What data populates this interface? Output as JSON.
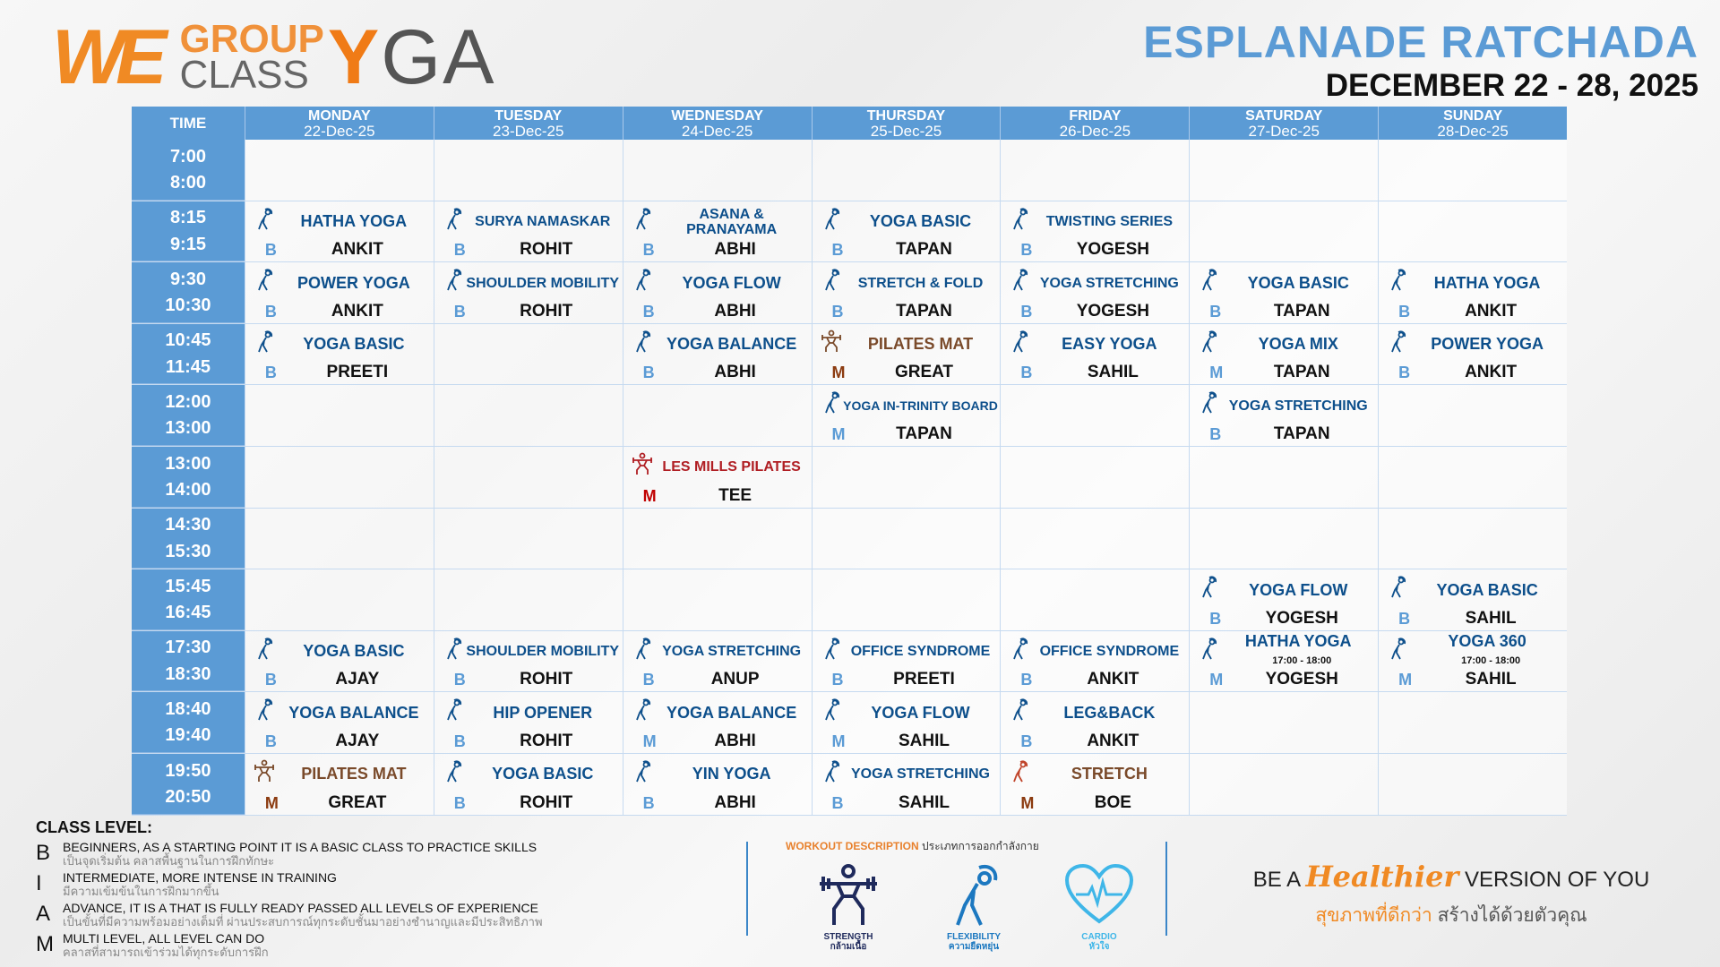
{
  "logo": {
    "we": "WE",
    "group": "GROUP",
    "class": "CLASS",
    "yoga_y": "Y",
    "yoga_rest": "GA"
  },
  "location": "ESPLANADE RATCHADA",
  "date_range": "DECEMBER 22 - 28, 2025",
  "header": {
    "time": "TIME",
    "days": [
      {
        "day": "MONDAY",
        "date": "22-Dec-25"
      },
      {
        "day": "TUESDAY",
        "date": "23-Dec-25"
      },
      {
        "day": "WEDNESDAY",
        "date": "24-Dec-25"
      },
      {
        "day": "THURSDAY",
        "date": "25-Dec-25"
      },
      {
        "day": "FRIDAY",
        "date": "26-Dec-25"
      },
      {
        "day": "SATURDAY",
        "date": "27-Dec-25"
      },
      {
        "day": "SUNDAY",
        "date": "28-Dec-25"
      }
    ]
  },
  "colors": {
    "yoga": "#0d4f8b",
    "level": "#5b9bd5",
    "pilates": "#7a4a2a",
    "pilates_level": "#8b3a0f",
    "lesmills": "#b01e23",
    "lesmills_level": "#c00000",
    "header": "#5b9bd5"
  },
  "rows": [
    {
      "start": "7:00",
      "end": "8:00",
      "cells": [
        null,
        null,
        null,
        null,
        null,
        null,
        null
      ]
    },
    {
      "start": "8:15",
      "end": "9:15",
      "cells": [
        {
          "name": "HATHA YOGA",
          "level": "B",
          "instructor": "ANKIT",
          "icon": "flexibility"
        },
        {
          "name": "SURYA NAMASKAR",
          "level": "B",
          "instructor": "ROHIT",
          "icon": "flexibility"
        },
        {
          "name": "ASANA & PRANAYAMA",
          "level": "B",
          "instructor": "ABHI",
          "icon": "flexibility"
        },
        {
          "name": "YOGA BASIC",
          "level": "B",
          "instructor": "TAPAN",
          "icon": "flexibility"
        },
        {
          "name": "TWISTING SERIES",
          "level": "B",
          "instructor": "YOGESH",
          "icon": "flexibility"
        },
        null,
        null
      ]
    },
    {
      "start": "9:30",
      "end": "10:30",
      "cells": [
        {
          "name": "POWER YOGA",
          "level": "B",
          "instructor": "ANKIT",
          "icon": "flexibility"
        },
        {
          "name": "SHOULDER MOBILITY",
          "level": "B",
          "instructor": "ROHIT",
          "icon": "flexibility"
        },
        {
          "name": "YOGA FLOW",
          "level": "B",
          "instructor": "ABHI",
          "icon": "flexibility"
        },
        {
          "name": "STRETCH & FOLD",
          "level": "B",
          "instructor": "TAPAN",
          "icon": "flexibility"
        },
        {
          "name": "YOGA STRETCHING",
          "level": "B",
          "instructor": "YOGESH",
          "icon": "flexibility"
        },
        {
          "name": "YOGA BASIC",
          "level": "B",
          "instructor": "TAPAN",
          "icon": "flexibility"
        },
        {
          "name": "HATHA YOGA",
          "level": "B",
          "instructor": "ANKIT",
          "icon": "flexibility"
        }
      ]
    },
    {
      "start": "10:45",
      "end": "11:45",
      "cells": [
        {
          "name": "YOGA BASIC",
          "level": "B",
          "instructor": "PREETI",
          "icon": "flexibility"
        },
        null,
        {
          "name": "YOGA BALANCE",
          "level": "B",
          "instructor": "ABHI",
          "icon": "flexibility"
        },
        {
          "name": "PILATES MAT",
          "level": "M",
          "instructor": "GREAT",
          "icon": "strength",
          "style": "pilates"
        },
        {
          "name": "EASY YOGA",
          "level": "B",
          "instructor": "SAHIL",
          "icon": "flexibility"
        },
        {
          "name": "YOGA MIX",
          "level": "M",
          "instructor": "TAPAN",
          "icon": "flexibility"
        },
        {
          "name": "POWER YOGA",
          "level": "B",
          "instructor": "ANKIT",
          "icon": "flexibility"
        }
      ]
    },
    {
      "start": "12:00",
      "end": "13:00",
      "cells": [
        null,
        null,
        null,
        {
          "name": "YOGA IN-TRINITY BOARD",
          "level": "M",
          "instructor": "TAPAN",
          "icon": "flexibility"
        },
        null,
        {
          "name": "YOGA STRETCHING",
          "level": "B",
          "instructor": "TAPAN",
          "icon": "flexibility"
        },
        null
      ]
    },
    {
      "start": "13:00",
      "end": "14:00",
      "cells": [
        null,
        null,
        {
          "name": "LES MILLS PILATES",
          "level": "M",
          "instructor": "TEE",
          "icon": "strength",
          "style": "lesmills"
        },
        null,
        null,
        null,
        null
      ]
    },
    {
      "start": "14:30",
      "end": "15:30",
      "cells": [
        null,
        null,
        null,
        null,
        null,
        null,
        null
      ]
    },
    {
      "start": "15:45",
      "end": "16:45",
      "cells": [
        null,
        null,
        null,
        null,
        null,
        {
          "name": "YOGA FLOW",
          "level": "B",
          "instructor": "YOGESH",
          "icon": "flexibility"
        },
        {
          "name": "YOGA BASIC",
          "level": "B",
          "instructor": "SAHIL",
          "icon": "flexibility"
        }
      ]
    },
    {
      "start": "17:30",
      "end": "18:30",
      "cells": [
        {
          "name": "YOGA BASIC",
          "level": "B",
          "instructor": "AJAY",
          "icon": "flexibility"
        },
        {
          "name": "SHOULDER MOBILITY",
          "level": "B",
          "instructor": "ROHIT",
          "icon": "flexibility"
        },
        {
          "name": "YOGA STRETCHING",
          "level": "B",
          "instructor": "ANUP",
          "icon": "flexibility"
        },
        {
          "name": "OFFICE SYNDROME",
          "level": "B",
          "instructor": "PREETI",
          "icon": "flexibility"
        },
        {
          "name": "OFFICE SYNDROME",
          "level": "B",
          "instructor": "ANKIT",
          "icon": "flexibility"
        },
        {
          "name": "HATHA YOGA",
          "level": "M",
          "instructor": "YOGESH",
          "icon": "flexibility",
          "note": "17:00 - 18:00"
        },
        {
          "name": "YOGA 360",
          "level": "M",
          "instructor": "SAHIL",
          "icon": "flexibility",
          "note": "17:00 - 18:00"
        }
      ]
    },
    {
      "start": "18:40",
      "end": "19:40",
      "cells": [
        {
          "name": "YOGA BALANCE",
          "level": "B",
          "instructor": "AJAY",
          "icon": "flexibility"
        },
        {
          "name": "HIP OPENER",
          "level": "B",
          "instructor": "ROHIT",
          "icon": "flexibility"
        },
        {
          "name": "YOGA BALANCE",
          "level": "M",
          "instructor": "ABHI",
          "icon": "flexibility"
        },
        {
          "name": "YOGA FLOW",
          "level": "M",
          "instructor": "SAHIL",
          "icon": "flexibility"
        },
        {
          "name": "LEG&BACK",
          "level": "B",
          "instructor": "ANKIT",
          "icon": "flexibility"
        },
        null,
        null
      ]
    },
    {
      "start": "19:50",
      "end": "20:50",
      "cells": [
        {
          "name": "PILATES MAT",
          "level": "M",
          "instructor": "GREAT",
          "icon": "strength",
          "style": "pilates"
        },
        {
          "name": "YOGA BASIC",
          "level": "B",
          "instructor": "ROHIT",
          "icon": "flexibility"
        },
        {
          "name": "YIN YOGA",
          "level": "B",
          "instructor": "ABHI",
          "icon": "flexibility"
        },
        {
          "name": "YOGA STRETCHING",
          "level": "B",
          "instructor": "SAHIL",
          "icon": "flexibility"
        },
        {
          "name": "STRETCH",
          "level": "M",
          "instructor": "BOE",
          "icon": "flexibility",
          "style": "stretch"
        },
        null,
        null
      ]
    }
  ],
  "legend": {
    "title": "CLASS LEVEL:",
    "items": [
      {
        "letter": "B",
        "en": "BEGINNERS, AS A STARTING POINT IT IS A BASIC CLASS TO PRACTICE SKILLS",
        "th": "เป็นจุดเริ่มต้น คลาสพื้นฐานในการฝึกทักษะ"
      },
      {
        "letter": "I",
        "en": "INTERMEDIATE, MORE INTENSE IN TRAINING",
        "th": "มีความเข้มข้นในการฝึกมากขึ้น"
      },
      {
        "letter": "A",
        "en": "ADVANCE, IT IS A THAT IS FULLY READY PASSED ALL LEVELS OF EXPERIENCE",
        "th": "เป็นขั้นที่มีความพร้อมอย่างเต็มที่ ผ่านประสบการณ์ทุกระดับชั้นมาอย่างชำนาญและมีประสิทธิภาพ"
      },
      {
        "letter": "M",
        "en": "MULTI LEVEL, ALL LEVEL CAN DO",
        "th": "คลาสที่สามารถเข้าร่วมได้ทุกระดับการฝึก"
      }
    ]
  },
  "workout": {
    "title": "WORKOUT DESCRIPTION",
    "title_th": "ประเภทการออกกำลังกาย",
    "types": [
      {
        "en": "STRENGTH",
        "th": "กล้ามเนื้อ",
        "color": "#1f2a5c"
      },
      {
        "en": "FLEXIBILITY",
        "th": "ความยืดหยุ่น",
        "color": "#1c78c0"
      },
      {
        "en": "CARDIO",
        "th": "หัวใจ",
        "color": "#3fb6e8"
      }
    ]
  },
  "slogan": {
    "pre": "BE A",
    "script": "Healthier",
    "post": "VERSION OF YOU",
    "th_highlight": "สุขภาพที่ดีกว่า",
    "th_rest": "สร้างได้ด้วยตัวคุณ"
  }
}
